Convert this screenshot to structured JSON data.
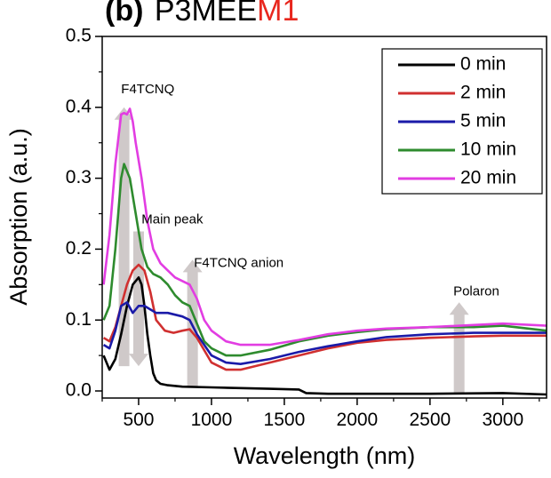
{
  "chart_data": {
    "type": "line",
    "title": {
      "prefix": "(b)",
      "main": "P3MEE",
      "accent": "M1",
      "accent_color": "#e8271e"
    },
    "xlabel": "Wavelength (nm)",
    "ylabel": "Absorption (a.u.)",
    "xlim": [
      250,
      3300
    ],
    "ylim": [
      -0.01,
      0.5
    ],
    "xticks": [
      500,
      1000,
      1500,
      2000,
      2500,
      3000
    ],
    "yticks": [
      0.0,
      0.1,
      0.2,
      0.3,
      0.4,
      0.5
    ],
    "ytick_labels": [
      "0.0",
      "0.1",
      "0.2",
      "0.3",
      "0.4",
      "0.5"
    ],
    "grid": false,
    "legend_position": "top-right",
    "series": [
      {
        "name": "0 min",
        "color": "#000000",
        "x": [
          260,
          300,
          340,
          380,
          420,
          460,
          500,
          520,
          540,
          560,
          580,
          600,
          620,
          650,
          700,
          800,
          1000,
          1200,
          1400,
          1600,
          1650,
          1800,
          2000,
          2500,
          3000,
          3300
        ],
        "y": [
          0.05,
          0.03,
          0.045,
          0.08,
          0.12,
          0.15,
          0.16,
          0.15,
          0.12,
          0.08,
          0.05,
          0.025,
          0.015,
          0.01,
          0.008,
          0.006,
          0.005,
          0.004,
          0.003,
          0.002,
          -0.003,
          -0.004,
          -0.004,
          -0.004,
          -0.003,
          -0.005
        ]
      },
      {
        "name": "2 min",
        "color": "#d03030",
        "x": [
          260,
          300,
          340,
          380,
          420,
          460,
          500,
          540,
          580,
          620,
          680,
          740,
          800,
          850,
          900,
          1000,
          1100,
          1200,
          1400,
          1600,
          1800,
          2000,
          2200,
          2500,
          2800,
          3000,
          3300
        ],
        "y": [
          0.075,
          0.07,
          0.09,
          0.12,
          0.15,
          0.17,
          0.178,
          0.17,
          0.14,
          0.1,
          0.085,
          0.082,
          0.085,
          0.087,
          0.075,
          0.04,
          0.03,
          0.03,
          0.04,
          0.05,
          0.06,
          0.068,
          0.072,
          0.075,
          0.077,
          0.078,
          0.078
        ]
      },
      {
        "name": "5 min",
        "color": "#1a1aa8",
        "x": [
          260,
          300,
          340,
          380,
          420,
          460,
          500,
          540,
          580,
          620,
          700,
          800,
          850,
          900,
          1000,
          1100,
          1200,
          1400,
          1600,
          1800,
          2000,
          2200,
          2500,
          2800,
          3000,
          3300
        ],
        "y": [
          0.065,
          0.06,
          0.085,
          0.12,
          0.125,
          0.11,
          0.12,
          0.12,
          0.115,
          0.11,
          0.11,
          0.105,
          0.1,
          0.08,
          0.05,
          0.04,
          0.038,
          0.045,
          0.055,
          0.063,
          0.07,
          0.076,
          0.08,
          0.082,
          0.082,
          0.082
        ]
      },
      {
        "name": "10 min",
        "color": "#2e8b2e",
        "x": [
          260,
          300,
          340,
          380,
          400,
          440,
          480,
          520,
          560,
          600,
          650,
          700,
          750,
          800,
          850,
          900,
          950,
          1000,
          1100,
          1200,
          1400,
          1600,
          1800,
          2000,
          2200,
          2500,
          2800,
          3000,
          3300
        ],
        "y": [
          0.1,
          0.12,
          0.2,
          0.3,
          0.32,
          0.3,
          0.25,
          0.2,
          0.175,
          0.165,
          0.16,
          0.15,
          0.135,
          0.125,
          0.12,
          0.095,
          0.07,
          0.06,
          0.05,
          0.05,
          0.058,
          0.07,
          0.078,
          0.083,
          0.087,
          0.09,
          0.09,
          0.092,
          0.085
        ]
      },
      {
        "name": "20 min",
        "color": "#e23de2",
        "x": [
          260,
          300,
          340,
          380,
          400,
          420,
          440,
          460,
          480,
          520,
          560,
          600,
          650,
          700,
          750,
          800,
          850,
          900,
          950,
          1000,
          1100,
          1200,
          1400,
          1600,
          1800,
          2000,
          2200,
          2500,
          2800,
          3000,
          3300
        ],
        "y": [
          0.15,
          0.22,
          0.32,
          0.39,
          0.392,
          0.39,
          0.398,
          0.38,
          0.35,
          0.3,
          0.24,
          0.2,
          0.18,
          0.17,
          0.16,
          0.155,
          0.15,
          0.13,
          0.1,
          0.085,
          0.07,
          0.065,
          0.065,
          0.072,
          0.08,
          0.085,
          0.088,
          0.09,
          0.093,
          0.095,
          0.092
        ]
      }
    ],
    "annotations": [
      {
        "text": "F4TCNQ",
        "x": 380,
        "y": 0.42
      },
      {
        "text": "Main peak",
        "x": 520,
        "y": 0.236
      },
      {
        "text": "F4TCNQ anion",
        "x": 880,
        "y": 0.175
      },
      {
        "text": "Polaron",
        "x": 2660,
        "y": 0.135
      }
    ],
    "arrows": [
      {
        "direction": "up",
        "x": 400,
        "y_from": 0.035,
        "y_to": 0.4,
        "color": "#c7c0c0"
      },
      {
        "direction": "down",
        "x": 500,
        "y_from": 0.225,
        "y_to": 0.035,
        "color": "#c7c0c0"
      },
      {
        "direction": "up",
        "x": 870,
        "y_from": 0.005,
        "y_to": 0.185,
        "color": "#c7c0c0"
      },
      {
        "direction": "up",
        "x": 2700,
        "y_from": -0.005,
        "y_to": 0.125,
        "color": "#c7c0c0"
      }
    ]
  }
}
